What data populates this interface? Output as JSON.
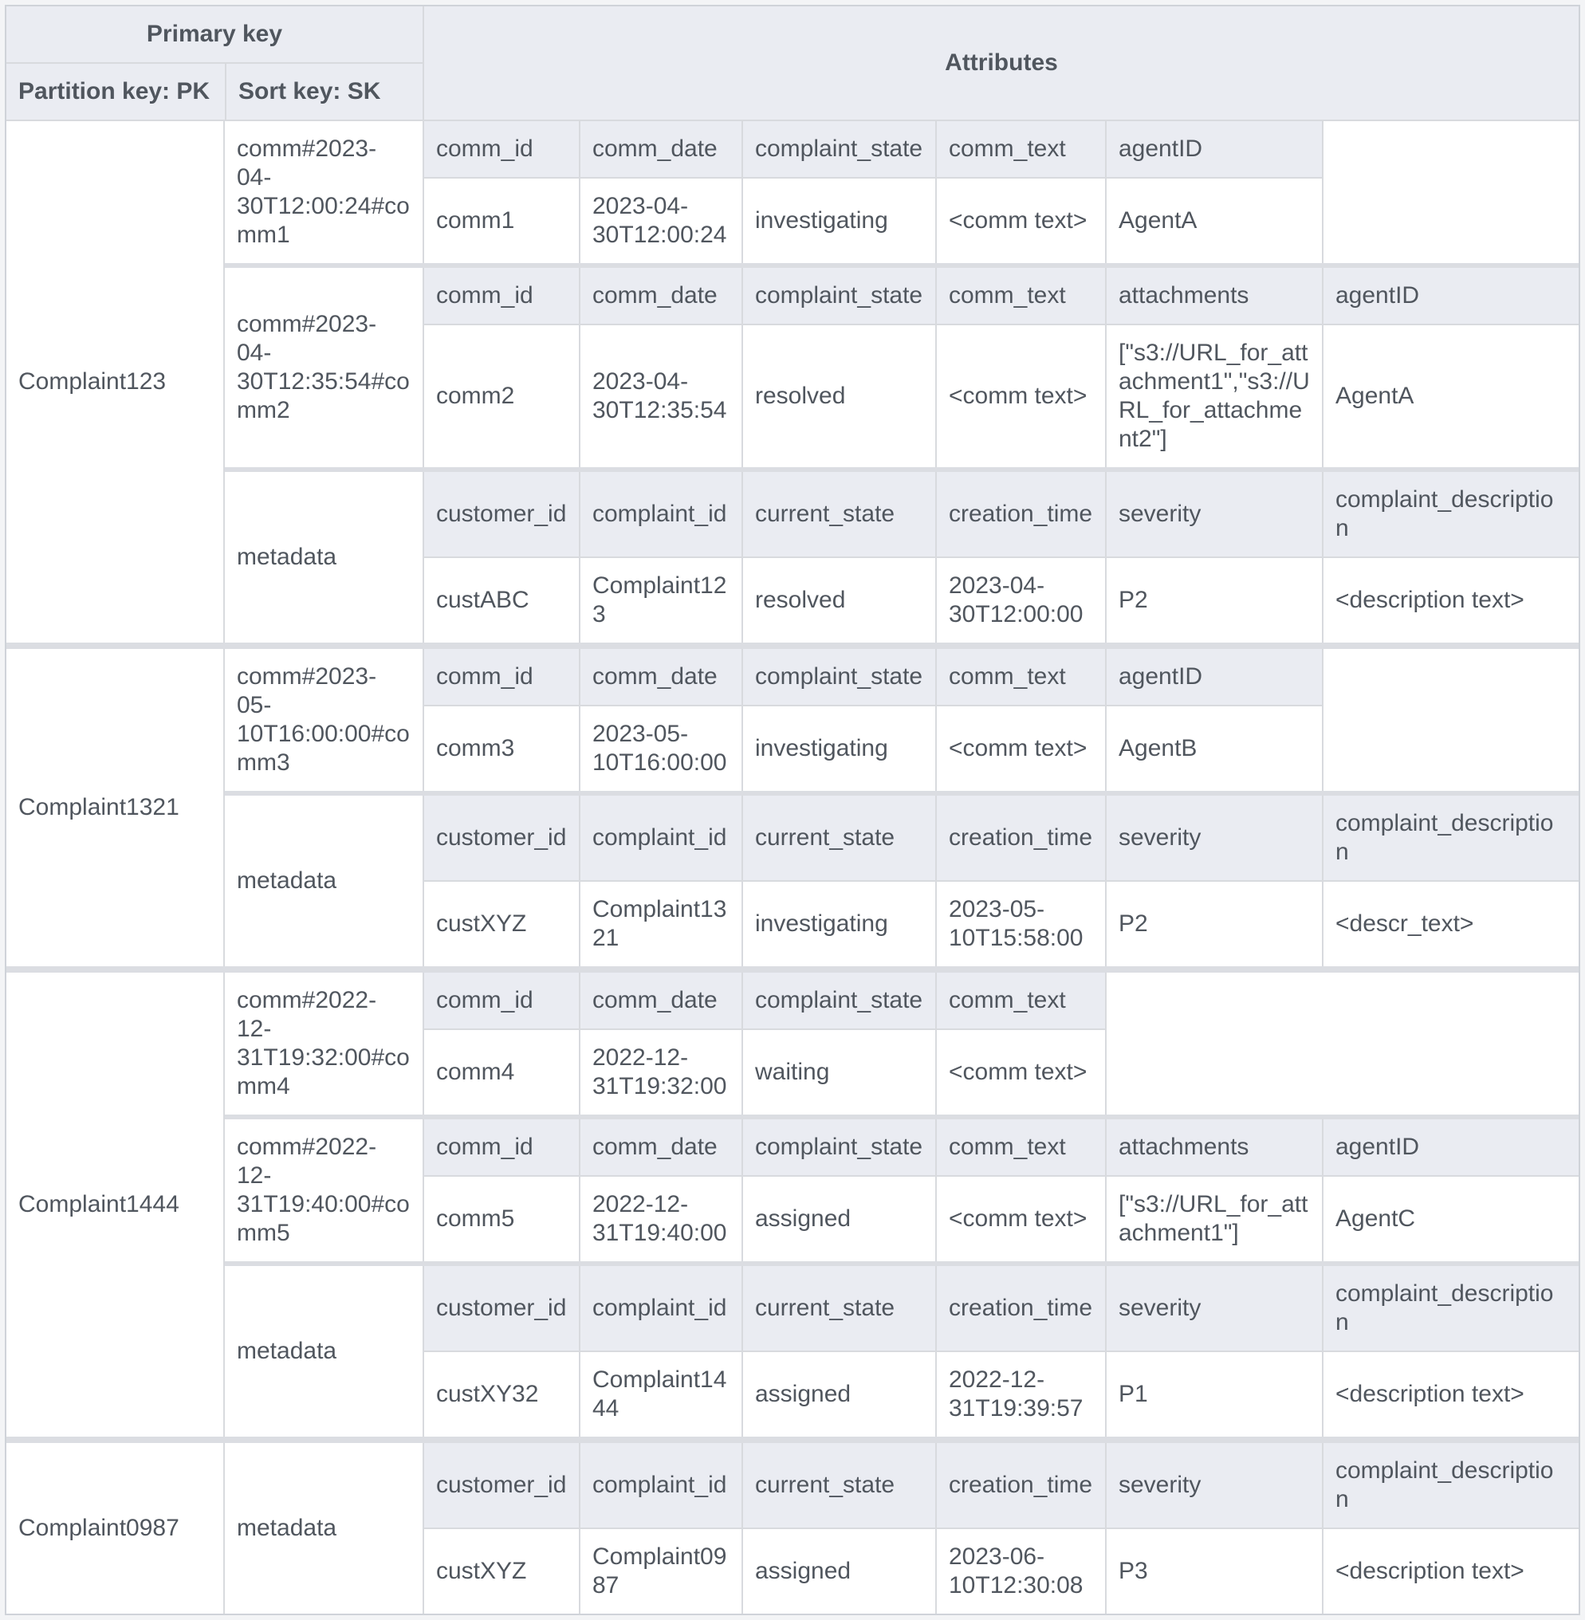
{
  "table": {
    "header": {
      "primary_key": "Primary key",
      "partition_key": "Partition key: PK",
      "sort_key": "Sort key: SK",
      "attributes": "Attributes"
    },
    "colors": {
      "header_bg": "#eaecf2",
      "border": "#d8dade",
      "separator": "#dbdde2",
      "text": "#50565e",
      "cell_bg": "#ffffff"
    },
    "groups": [
      {
        "partition_key": "Complaint123",
        "items": [
          {
            "sort_key": "comm#2023-04-30T12:00:24#comm1",
            "attrs": [
              {
                "name": "comm_id",
                "value": "comm1"
              },
              {
                "name": "comm_date",
                "value": "2023-04-30T12:00:24"
              },
              {
                "name": "complaint_state",
                "value": "investigating"
              },
              {
                "name": "comm_text",
                "value": "<comm text>"
              },
              {
                "name": "agentID",
                "value": "AgentA"
              }
            ]
          },
          {
            "sort_key": "comm#2023-04-30T12:35:54#comm2",
            "attrs": [
              {
                "name": "comm_id",
                "value": "comm2"
              },
              {
                "name": "comm_date",
                "value": "2023-04-30T12:35:54"
              },
              {
                "name": "complaint_state",
                "value": "resolved"
              },
              {
                "name": "comm_text",
                "value": "<comm text>"
              },
              {
                "name": "attachments",
                "value": "[\"s3://URL_for_attachment1\",\"s3://URL_for_attachment2\"]"
              },
              {
                "name": "agentID",
                "value": "AgentA"
              }
            ]
          },
          {
            "sort_key": "metadata",
            "attrs": [
              {
                "name": "customer_id",
                "value": "custABC"
              },
              {
                "name": "complaint_id",
                "value": "Complaint123"
              },
              {
                "name": "current_state",
                "value": "resolved"
              },
              {
                "name": "creation_time",
                "value": "2023-04-30T12:00:00"
              },
              {
                "name": "severity",
                "value": "P2"
              },
              {
                "name": "complaint_description",
                "value": "<description text>"
              }
            ]
          }
        ]
      },
      {
        "partition_key": "Complaint1321",
        "items": [
          {
            "sort_key": "comm#2023-05-10T16:00:00#comm3",
            "attrs": [
              {
                "name": "comm_id",
                "value": "comm3"
              },
              {
                "name": "comm_date",
                "value": "2023-05-10T16:00:00"
              },
              {
                "name": "complaint_state",
                "value": "investigating"
              },
              {
                "name": "comm_text",
                "value": "<comm text>"
              },
              {
                "name": "agentID",
                "value": "AgentB"
              }
            ]
          },
          {
            "sort_key": "metadata",
            "attrs": [
              {
                "name": "customer_id",
                "value": "custXYZ"
              },
              {
                "name": "complaint_id",
                "value": "Complaint1321"
              },
              {
                "name": "current_state",
                "value": "investigating"
              },
              {
                "name": "creation_time",
                "value": "2023-05-10T15:58:00"
              },
              {
                "name": "severity",
                "value": "P2"
              },
              {
                "name": "complaint_description",
                "value": "<descr_text>"
              }
            ]
          }
        ]
      },
      {
        "partition_key": "Complaint1444",
        "items": [
          {
            "sort_key": "comm#2022-12-31T19:32:00#comm4",
            "attrs": [
              {
                "name": "comm_id",
                "value": "comm4"
              },
              {
                "name": "comm_date",
                "value": "2022-12-31T19:32:00"
              },
              {
                "name": "complaint_state",
                "value": "waiting"
              },
              {
                "name": "comm_text",
                "value": "<comm text>"
              }
            ]
          },
          {
            "sort_key": "comm#2022-12-31T19:40:00#comm5",
            "attrs": [
              {
                "name": "comm_id",
                "value": "comm5"
              },
              {
                "name": "comm_date",
                "value": "2022-12-31T19:40:00"
              },
              {
                "name": "complaint_state",
                "value": "assigned"
              },
              {
                "name": "comm_text",
                "value": "<comm text>"
              },
              {
                "name": "attachments",
                "value": "[\"s3://URL_for_attachment1\"]"
              },
              {
                "name": "agentID",
                "value": "AgentC"
              }
            ]
          },
          {
            "sort_key": "metadata",
            "attrs": [
              {
                "name": "customer_id",
                "value": "custXY32"
              },
              {
                "name": "complaint_id",
                "value": "Complaint1444"
              },
              {
                "name": "current_state",
                "value": "assigned"
              },
              {
                "name": "creation_time",
                "value": "2022-12-31T19:39:57"
              },
              {
                "name": "severity",
                "value": "P1"
              },
              {
                "name": "complaint_description",
                "value": "<description text>"
              }
            ]
          }
        ]
      },
      {
        "partition_key": "Complaint0987",
        "items": [
          {
            "sort_key": "metadata",
            "attrs": [
              {
                "name": "customer_id",
                "value": "custXYZ"
              },
              {
                "name": "complaint_id",
                "value": "Complaint0987"
              },
              {
                "name": "current_state",
                "value": "assigned"
              },
              {
                "name": "creation_time",
                "value": "2023-06-10T12:30:08"
              },
              {
                "name": "severity",
                "value": "P3"
              },
              {
                "name": "complaint_description",
                "value": "<description text>"
              }
            ]
          }
        ]
      }
    ]
  }
}
